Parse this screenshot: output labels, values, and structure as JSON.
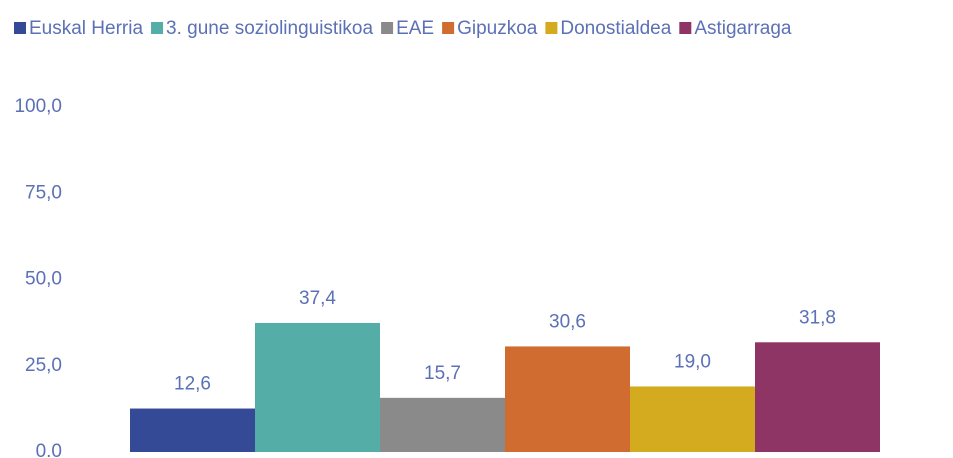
{
  "chart_data": {
    "type": "bar",
    "series": [
      {
        "name": "Euskal Herria",
        "color": "#354a97",
        "values": [
          12.6
        ],
        "value_labels": [
          "12,6"
        ]
      },
      {
        "name": "3. gune soziolinguistikoa",
        "color": "#55ada8",
        "values": [
          37.4
        ],
        "value_labels": [
          "37,4"
        ]
      },
      {
        "name": "EAE",
        "color": "#8a8a8a",
        "values": [
          15.7
        ],
        "value_labels": [
          "15,7"
        ]
      },
      {
        "name": "Gipuzkoa",
        "color": "#d06c2f",
        "values": [
          30.6
        ],
        "value_labels": [
          "30,6"
        ]
      },
      {
        "name": "Donostialdea",
        "color": "#d4aa1e",
        "values": [
          19.0
        ],
        "value_labels": [
          "19,0"
        ]
      },
      {
        "name": "Astigarraga",
        "color": "#8e3566",
        "values": [
          31.8
        ],
        "value_labels": [
          "31,8"
        ]
      }
    ],
    "ylim": [
      0,
      100
    ],
    "yticks": [
      {
        "value": 0,
        "label": "0.0"
      },
      {
        "value": 25,
        "label": "25,0"
      },
      {
        "value": 50,
        "label": "50,0"
      },
      {
        "value": 75,
        "label": "75,0"
      },
      {
        "value": 100,
        "label": "100,0"
      }
    ],
    "legend": "top"
  }
}
